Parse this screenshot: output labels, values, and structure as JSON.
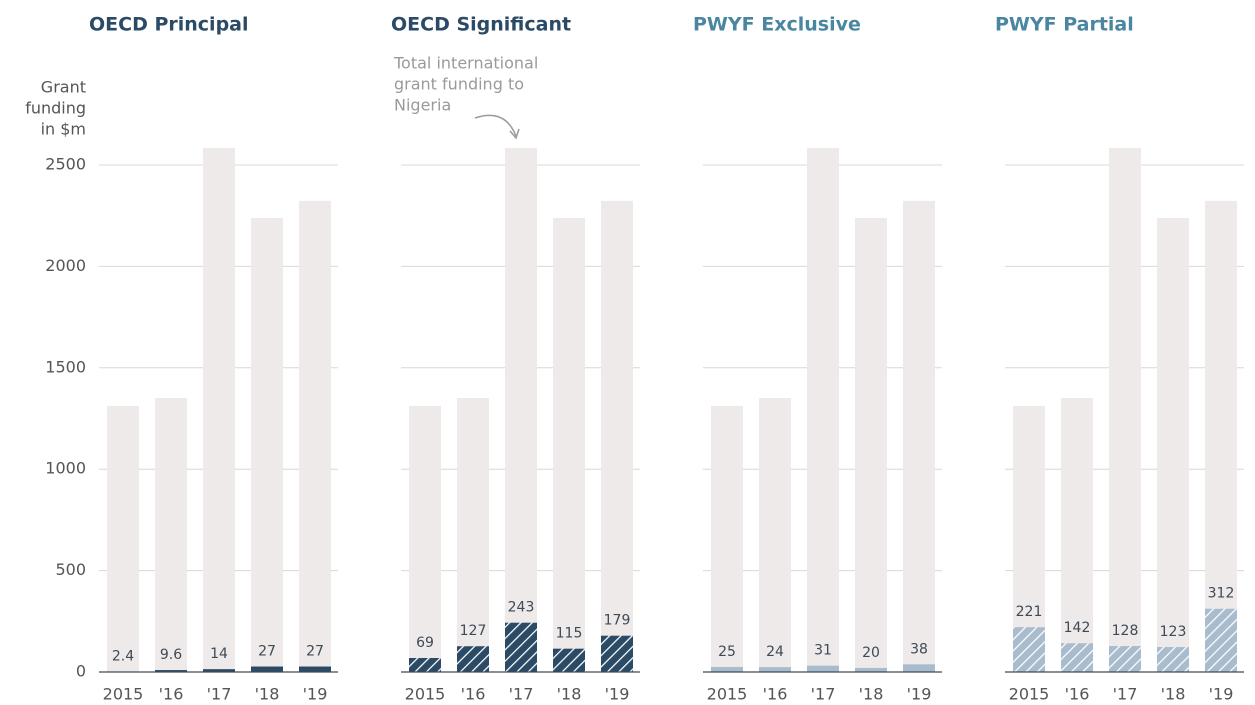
{
  "chart_data": [
    {
      "type": "bar",
      "title": "OECD Principal",
      "title_color": "#2b4a66",
      "y_label": [
        "Grant",
        "funding",
        "in $m"
      ],
      "categories": [
        "2015",
        "'16",
        "'17",
        "'18",
        "'19"
      ],
      "series": [
        {
          "color": "#efeaea",
          "values": [
            1312,
            1351,
            2584,
            2239,
            2323
          ]
        },
        {
          "color": "#2b4a66",
          "values": [
            2.4,
            9.6,
            14,
            27,
            27
          ],
          "hatch": false
        }
      ],
      "ylim": [
        0,
        2500
      ],
      "yticks": [
        0,
        500,
        1000,
        1500,
        2000,
        2500
      ],
      "grid": true
    },
    {
      "type": "bar",
      "title": "OECD Significant",
      "title_color": "#2b4a66",
      "annotation": [
        "Total international",
        "grant funding to",
        "Nigeria"
      ],
      "categories": [
        "2015",
        "'16",
        "'17",
        "'18",
        "'19"
      ],
      "series": [
        {
          "color": "#efeaea",
          "values": [
            1312,
            1351,
            2584,
            2239,
            2323
          ]
        },
        {
          "color": "#2b4a66",
          "values": [
            69,
            127,
            243,
            115,
            179
          ],
          "hatch": true
        }
      ],
      "ylim": [
        0,
        2500
      ],
      "yticks": [
        0,
        500,
        1000,
        1500,
        2000,
        2500
      ],
      "grid": true
    },
    {
      "type": "bar",
      "title": "PWYF Exclusive",
      "title_color": "#4a86a0",
      "categories": [
        "2015",
        "'16",
        "'17",
        "'18",
        "'19"
      ],
      "series": [
        {
          "color": "#efeaea",
          "values": [
            1312,
            1351,
            2584,
            2239,
            2323
          ]
        },
        {
          "color": "#a9bccd",
          "values": [
            25,
            24,
            31,
            20,
            38
          ],
          "hatch": false
        }
      ],
      "ylim": [
        0,
        2500
      ],
      "yticks": [
        0,
        500,
        1000,
        1500,
        2000,
        2500
      ],
      "grid": true
    },
    {
      "type": "bar",
      "title": "PWYF Partial",
      "title_color": "#4a86a0",
      "categories": [
        "2015",
        "'16",
        "'17",
        "'18",
        "'19"
      ],
      "series": [
        {
          "color": "#efeaea",
          "values": [
            1312,
            1351,
            2584,
            2239,
            2323
          ]
        },
        {
          "color": "#a9bccd",
          "values": [
            221,
            142,
            128,
            123,
            312
          ],
          "hatch": true
        }
      ],
      "ylim": [
        0,
        2500
      ],
      "yticks": [
        0,
        500,
        1000,
        1500,
        2000,
        2500
      ],
      "grid": true
    }
  ]
}
